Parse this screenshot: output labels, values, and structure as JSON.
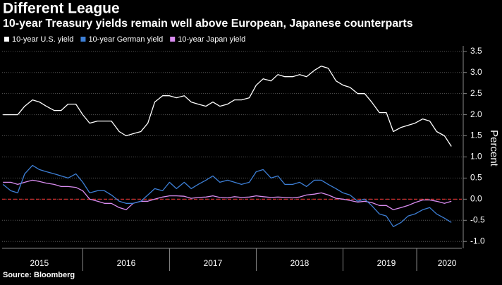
{
  "chart_data": {
    "type": "line",
    "title": "Different League",
    "subtitle": "10-year Treasury yields remain well above European, Japanese counterparts",
    "source": "Source: Bloomberg",
    "y_label": "Percent",
    "x": [
      2015.08,
      2015.17,
      2015.25,
      2015.33,
      2015.42,
      2015.5,
      2015.58,
      2015.67,
      2015.75,
      2015.83,
      2015.92,
      2016,
      2016.08,
      2016.17,
      2016.25,
      2016.33,
      2016.42,
      2016.5,
      2016.58,
      2016.67,
      2016.75,
      2016.83,
      2016.92,
      2017,
      2017.08,
      2017.17,
      2017.25,
      2017.33,
      2017.42,
      2017.5,
      2017.58,
      2017.67,
      2017.75,
      2017.83,
      2017.92,
      2018,
      2018.08,
      2018.17,
      2018.25,
      2018.33,
      2018.42,
      2018.5,
      2018.58,
      2018.67,
      2018.75,
      2018.83,
      2018.92,
      2019,
      2019.08,
      2019.17,
      2019.25,
      2019.33,
      2019.42,
      2019.5,
      2019.58,
      2019.67,
      2019.75,
      2019.83,
      2019.92,
      2020,
      2020.08,
      2020.17,
      2020.25
    ],
    "series": [
      {
        "name": "10-year U.S. yield",
        "color": "#ffffff",
        "values": [
          2.0,
          2.0,
          2.0,
          2.2,
          2.35,
          2.3,
          2.2,
          2.1,
          2.1,
          2.25,
          2.25,
          2.0,
          1.8,
          1.85,
          1.85,
          1.85,
          1.6,
          1.5,
          1.55,
          1.6,
          1.8,
          2.3,
          2.45,
          2.45,
          2.4,
          2.45,
          2.3,
          2.25,
          2.2,
          2.3,
          2.2,
          2.25,
          2.35,
          2.35,
          2.4,
          2.7,
          2.85,
          2.8,
          2.95,
          2.9,
          2.9,
          2.95,
          2.9,
          3.05,
          3.15,
          3.1,
          2.8,
          2.7,
          2.65,
          2.5,
          2.5,
          2.3,
          2.05,
          2.05,
          1.6,
          1.7,
          1.75,
          1.8,
          1.9,
          1.85,
          1.6,
          1.5,
          1.25
        ]
      },
      {
        "name": "10-year German yield",
        "color": "#3d7fd6",
        "values": [
          0.35,
          0.2,
          0.15,
          0.6,
          0.8,
          0.7,
          0.65,
          0.6,
          0.55,
          0.5,
          0.6,
          0.4,
          0.15,
          0.2,
          0.2,
          0.1,
          -0.05,
          -0.1,
          -0.1,
          -0.05,
          0.1,
          0.25,
          0.2,
          0.4,
          0.25,
          0.4,
          0.25,
          0.35,
          0.45,
          0.55,
          0.4,
          0.45,
          0.4,
          0.35,
          0.4,
          0.65,
          0.7,
          0.5,
          0.55,
          0.35,
          0.35,
          0.4,
          0.3,
          0.45,
          0.45,
          0.35,
          0.25,
          0.15,
          0.1,
          -0.05,
          0.0,
          -0.15,
          -0.35,
          -0.4,
          -0.65,
          -0.55,
          -0.4,
          -0.35,
          -0.25,
          -0.2,
          -0.35,
          -0.45,
          -0.55
        ]
      },
      {
        "name": "10-year Japan yield",
        "color": "#d98cf0",
        "values": [
          0.4,
          0.4,
          0.35,
          0.4,
          0.45,
          0.42,
          0.38,
          0.35,
          0.3,
          0.3,
          0.28,
          0.2,
          0.0,
          -0.05,
          -0.1,
          -0.1,
          -0.2,
          -0.25,
          -0.1,
          -0.05,
          -0.05,
          0.0,
          0.05,
          0.08,
          0.08,
          0.07,
          0.02,
          0.04,
          0.05,
          0.08,
          0.04,
          0.03,
          0.06,
          0.04,
          0.05,
          0.08,
          0.06,
          0.04,
          0.05,
          0.04,
          0.03,
          0.05,
          0.1,
          0.12,
          0.15,
          0.1,
          0.02,
          0.0,
          -0.03,
          -0.07,
          -0.05,
          -0.08,
          -0.15,
          -0.15,
          -0.25,
          -0.2,
          -0.15,
          -0.08,
          -0.02,
          -0.02,
          -0.05,
          -0.1,
          -0.05
        ]
      }
    ],
    "xlim": [
      2015.07,
      2020.37
    ],
    "xticks": [
      {
        "value": 2015.5,
        "label": "2015"
      },
      {
        "value": 2016.5,
        "label": "2016"
      },
      {
        "value": 2017.5,
        "label": "2017"
      },
      {
        "value": 2018.5,
        "label": "2018"
      },
      {
        "value": 2019.5,
        "label": "2019"
      },
      {
        "value": 2020.2,
        "label": "2020"
      }
    ],
    "ylim": [
      -1.13,
      3.63
    ],
    "yticks": [
      3.5,
      {
        "value": 3,
        "label": "3.0"
      },
      2.5,
      {
        "value": 2,
        "label": "2.0"
      },
      1.5,
      {
        "value": 1,
        "label": "1.0"
      },
      0.5,
      {
        "value": 0,
        "label": "0.0"
      },
      -0.5,
      {
        "value": -1,
        "label": "-1.0"
      }
    ],
    "grid": true,
    "zero_line": {
      "value": 0,
      "color": "#d03030"
    },
    "legend": "top-left"
  }
}
